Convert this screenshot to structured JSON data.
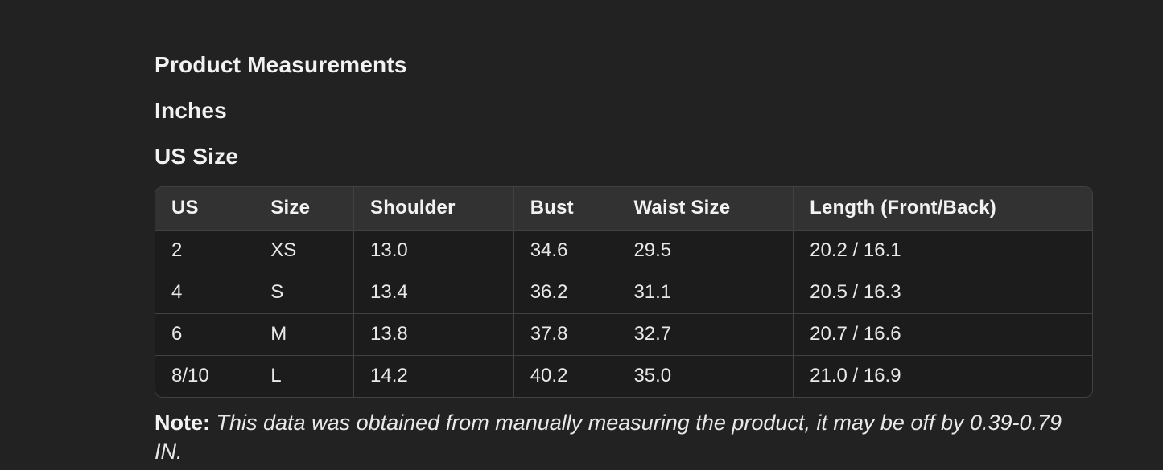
{
  "page": {
    "title": "Product Measurements",
    "unit_label": "Inches",
    "size_system_label": "US Size"
  },
  "table": {
    "columns": [
      "US",
      "Size",
      "Shoulder",
      "Bust",
      "Waist Size",
      "Length (Front/Back)"
    ],
    "rows": [
      [
        "2",
        "XS",
        "13.0",
        "34.6",
        "29.5",
        "20.2 / 16.1"
      ],
      [
        "4",
        "S",
        "13.4",
        "36.2",
        "31.1",
        "20.5 / 16.3"
      ],
      [
        "6",
        "M",
        "13.8",
        "37.8",
        "32.7",
        "20.7 / 16.6"
      ],
      [
        "8/10",
        "L",
        "14.2",
        "40.2",
        "35.0",
        "21.0 / 16.9"
      ]
    ]
  },
  "note": {
    "label": "Note:",
    "text": "This data was obtained from manually measuring the product, it may be off by 0.39-0.79 IN."
  },
  "colors": {
    "background": "#222222",
    "table_header_bg": "#323232",
    "table_cell_bg": "#1c1c1c",
    "border": "#414141",
    "text": "#f2f2f2"
  }
}
